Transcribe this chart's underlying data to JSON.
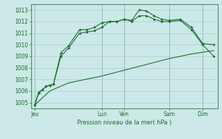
{
  "title": "",
  "xlabel": "Pression niveau de la mer( hPa )",
  "ylabel": "",
  "bg_color": "#cce8e8",
  "grid_color": "#aacece",
  "line_color": "#1a6e2a",
  "spine_color": "#4a8a5a",
  "ylim": [
    1004.5,
    1013.5
  ],
  "xlim": [
    0,
    100
  ],
  "yticks": [
    1005,
    1006,
    1007,
    1008,
    1009,
    1010,
    1011,
    1012,
    1013
  ],
  "day_tick_positions": [
    2,
    38,
    50,
    74,
    92
  ],
  "day_labels": [
    "Jeu",
    "Lun",
    "Ven",
    "Sam",
    "Dim"
  ],
  "day_vlines": [
    2,
    38,
    50,
    74,
    92
  ],
  "series1_x": [
    2,
    4,
    6,
    8,
    10,
    12,
    16,
    20,
    26,
    30,
    34,
    38,
    42,
    46,
    50,
    54,
    58,
    62,
    66,
    70,
    74,
    80,
    86,
    92,
    98
  ],
  "series1_y": [
    1004.8,
    1005.8,
    1006.1,
    1006.4,
    1006.5,
    1006.6,
    1009.3,
    1009.9,
    1011.3,
    1011.3,
    1011.5,
    1011.9,
    1012.0,
    1012.0,
    1012.2,
    1012.1,
    1013.0,
    1012.9,
    1012.5,
    1012.2,
    1012.1,
    1012.2,
    1011.5,
    1010.1,
    1010.0
  ],
  "series2_x": [
    2,
    4,
    6,
    8,
    10,
    12,
    16,
    20,
    26,
    30,
    34,
    38,
    42,
    46,
    50,
    54,
    58,
    62,
    66,
    70,
    74,
    80,
    86,
    92,
    98
  ],
  "series2_y": [
    1004.8,
    1005.9,
    1006.1,
    1006.4,
    1006.5,
    1006.6,
    1009.0,
    1009.7,
    1011.0,
    1011.1,
    1011.2,
    1011.5,
    1012.0,
    1012.0,
    1012.2,
    1012.0,
    1012.5,
    1012.5,
    1012.2,
    1012.0,
    1012.0,
    1012.1,
    1011.3,
    1010.0,
    1009.0
  ],
  "series3_x": [
    2,
    10,
    20,
    38,
    50,
    62,
    74,
    86,
    98
  ],
  "series3_y": [
    1004.8,
    1006.0,
    1006.7,
    1007.3,
    1007.8,
    1008.3,
    1008.8,
    1009.2,
    1009.5
  ]
}
